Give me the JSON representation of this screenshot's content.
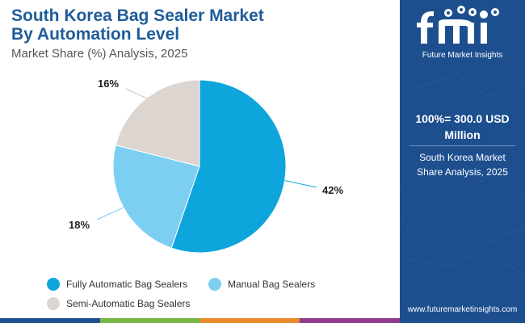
{
  "header": {
    "title_line1": "South Korea Bag Sealer Market",
    "title_line2": "By Automation Level",
    "subtitle": "Market Share (%) Analysis, 2025"
  },
  "chart_data": {
    "type": "pie",
    "title": "South Korea Bag Sealer Market By Automation Level",
    "subtitle": "Market Share (%) Analysis, 2025",
    "categories": [
      "Fully Automatic Bag Sealers",
      "Manual Bag Sealers",
      "Semi-Automatic Bag Sealers"
    ],
    "values": [
      42,
      18,
      16
    ],
    "labels": [
      "42%",
      "18%",
      "16%"
    ],
    "colors": [
      "#0ea5dc",
      "#7ccff0",
      "#ddd6d0"
    ],
    "legend_position": "bottom"
  },
  "panel": {
    "logo_text": "Future Market Insights",
    "total_line1": "100%= 300.0 USD",
    "total_line2": "Million",
    "sub_line1": "South Korea Market",
    "sub_line2": "Share Analysis, 2025",
    "url": "www.futuremarketinsights.com"
  },
  "colors": {
    "panel_bg": "#1d4f8f",
    "title": "#1f5c99",
    "bottom_bar": [
      "#1d4f8f",
      "#7ab648",
      "#e8892b",
      "#8e3b8e"
    ]
  }
}
